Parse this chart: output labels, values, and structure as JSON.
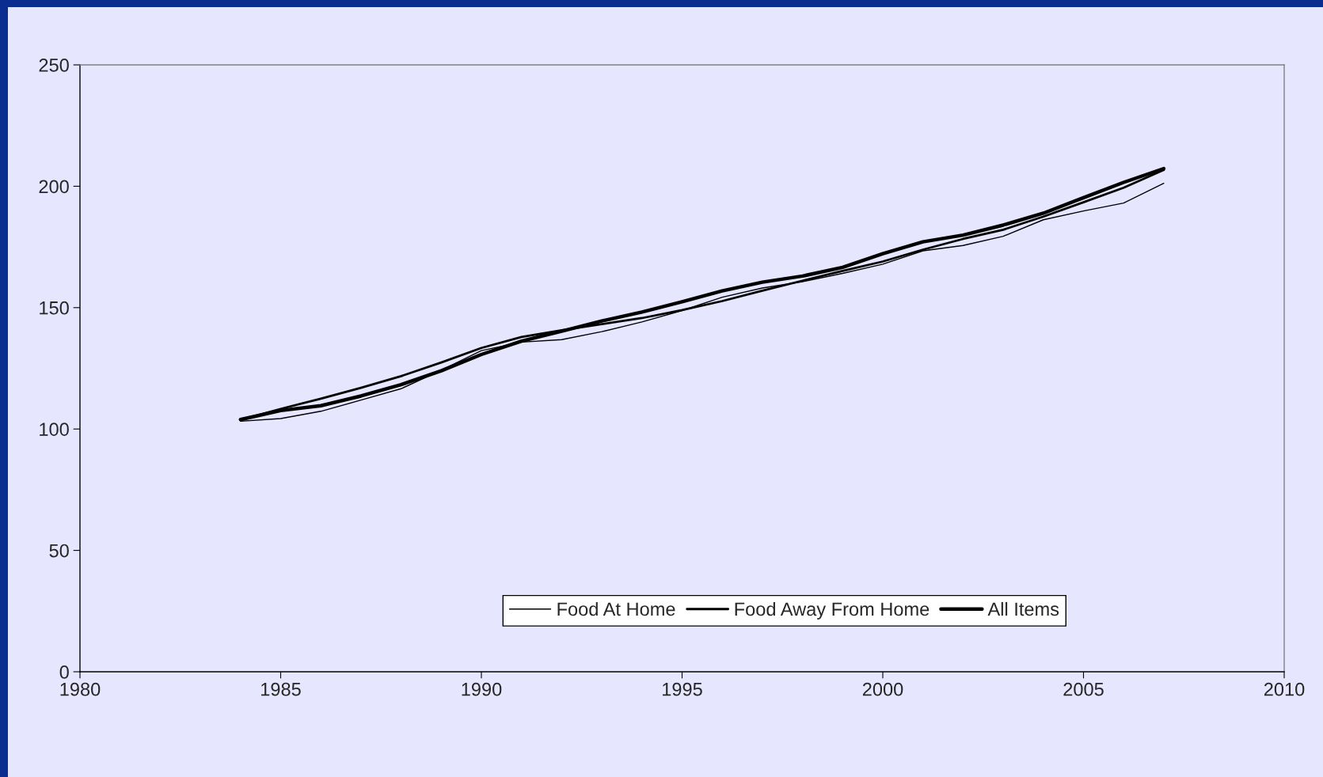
{
  "chart_data": {
    "type": "line",
    "x": [
      1984,
      1985,
      1986,
      1987,
      1988,
      1989,
      1990,
      1991,
      1992,
      1993,
      1994,
      1995,
      1996,
      1997,
      1998,
      1999,
      2000,
      2001,
      2002,
      2003,
      2004,
      2005,
      2006,
      2007
    ],
    "series": [
      {
        "name": "Food At Home",
        "color": "#000000",
        "values": [
          103.2,
          104.3,
          107.3,
          111.9,
          116.6,
          124.2,
          132.3,
          135.8,
          136.8,
          140.1,
          144.1,
          148.8,
          154.3,
          158.1,
          160.7,
          164.1,
          167.9,
          173.4,
          175.6,
          179.4,
          186.2,
          189.8,
          193.1,
          201.2
        ]
      },
      {
        "name": "Food Away From Home",
        "color": "#000000",
        "values": [
          103.8,
          108.3,
          112.5,
          117.0,
          121.8,
          127.4,
          133.4,
          137.9,
          140.7,
          143.2,
          145.7,
          149.0,
          152.7,
          157.0,
          161.1,
          165.1,
          169.0,
          173.9,
          178.3,
          182.1,
          187.5,
          193.4,
          199.4,
          206.7
        ]
      },
      {
        "name": "All Items",
        "color": "#000000",
        "values": [
          103.9,
          107.6,
          109.6,
          113.6,
          118.3,
          124.0,
          130.7,
          136.2,
          140.3,
          144.5,
          148.2,
          152.4,
          156.9,
          160.5,
          163.0,
          166.6,
          172.2,
          177.1,
          179.9,
          184.0,
          188.9,
          195.3,
          201.6,
          207.3
        ]
      }
    ],
    "xlim": [
      1980,
      2010
    ],
    "xticks": [
      1980,
      1985,
      1990,
      1995,
      2000,
      2005,
      2010
    ],
    "ylim": [
      0,
      250
    ],
    "yticks": [
      0,
      50,
      100,
      150,
      200,
      250
    ],
    "grid": false,
    "legend": "bottom",
    "marker": "none",
    "line_style": "solid"
  }
}
